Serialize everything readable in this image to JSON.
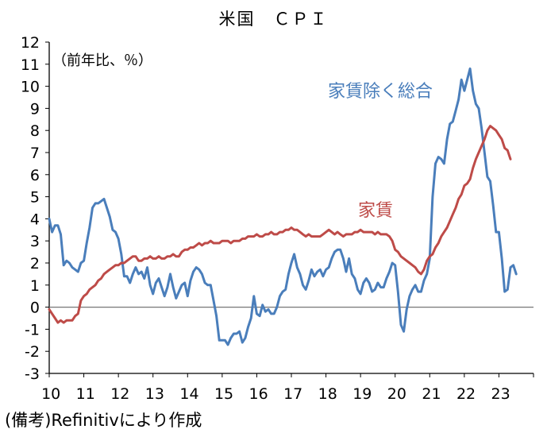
{
  "chart_data": {
    "type": "line",
    "title": "米国　ＣＰＩ",
    "unit_label": "（前年比、％）",
    "source_note": "(備考)Refinitivにより作成",
    "x_start": 2010.0,
    "x_step": 0.0833333,
    "xlim": [
      2010,
      2024
    ],
    "ylim": [
      -3,
      12
    ],
    "y_ticks": [
      -3,
      -2,
      -1,
      0,
      1,
      2,
      3,
      4,
      5,
      6,
      7,
      8,
      9,
      10,
      11,
      12
    ],
    "x_ticks": [
      "10",
      "11",
      "12",
      "13",
      "14",
      "15",
      "16",
      "17",
      "18",
      "19",
      "20",
      "21",
      "22",
      "23"
    ],
    "series": [
      {
        "name": "家賃除く総合",
        "color": "#4a7ebb",
        "values": [
          4.0,
          3.4,
          3.7,
          3.7,
          3.3,
          1.9,
          2.1,
          2.0,
          1.8,
          1.7,
          1.6,
          2.0,
          2.1,
          2.9,
          3.6,
          4.5,
          4.7,
          4.7,
          4.8,
          4.9,
          4.5,
          4.1,
          3.5,
          3.4,
          3.1,
          2.4,
          1.4,
          1.4,
          1.1,
          1.5,
          1.8,
          1.5,
          1.6,
          1.3,
          1.8,
          1.0,
          0.6,
          1.1,
          1.3,
          0.9,
          0.5,
          0.9,
          1.5,
          0.9,
          0.4,
          0.7,
          1.0,
          1.1,
          0.5,
          1.2,
          1.6,
          1.8,
          1.7,
          1.5,
          1.1,
          1.0,
          1.0,
          0.3,
          -0.4,
          -1.5,
          -1.5,
          -1.5,
          -1.7,
          -1.4,
          -1.2,
          -1.2,
          -1.1,
          -1.6,
          -1.4,
          -0.9,
          -0.5,
          0.5,
          -0.3,
          -0.4,
          0.1,
          -0.2,
          -0.1,
          -0.3,
          -0.3,
          0.0,
          0.5,
          0.7,
          0.8,
          1.5,
          2.0,
          2.4,
          1.8,
          1.5,
          1.0,
          0.8,
          1.2,
          1.7,
          1.4,
          1.6,
          1.7,
          1.4,
          1.7,
          1.8,
          2.2,
          2.5,
          2.6,
          2.6,
          2.2,
          1.6,
          2.2,
          1.5,
          1.3,
          0.8,
          0.6,
          1.1,
          1.3,
          1.1,
          0.7,
          0.8,
          1.1,
          0.9,
          0.9,
          1.3,
          1.6,
          2.0,
          1.9,
          0.7,
          -0.8,
          -1.1,
          -0.1,
          0.5,
          0.8,
          1.0,
          0.7,
          0.7,
          1.2,
          1.5,
          2.2,
          5.0,
          6.5,
          6.8,
          6.7,
          6.5,
          7.6,
          8.3,
          8.4,
          8.9,
          9.4,
          10.3,
          9.8,
          10.3,
          10.8,
          9.8,
          9.2,
          9.0,
          8.1,
          7.0,
          5.9,
          5.7,
          4.6,
          3.4,
          3.4,
          2.2,
          0.7,
          0.8,
          1.8,
          1.9,
          1.5
        ]
      },
      {
        "name": "家賃",
        "color": "#be4b48",
        "values": [
          -0.1,
          -0.3,
          -0.5,
          -0.7,
          -0.6,
          -0.7,
          -0.6,
          -0.6,
          -0.6,
          -0.4,
          -0.3,
          0.3,
          0.5,
          0.6,
          0.8,
          0.9,
          1.0,
          1.2,
          1.3,
          1.5,
          1.6,
          1.7,
          1.8,
          1.9,
          1.9,
          2.0,
          2.0,
          2.1,
          2.2,
          2.3,
          2.3,
          2.1,
          2.1,
          2.2,
          2.2,
          2.3,
          2.2,
          2.2,
          2.3,
          2.2,
          2.2,
          2.3,
          2.3,
          2.4,
          2.3,
          2.3,
          2.5,
          2.6,
          2.6,
          2.7,
          2.7,
          2.8,
          2.9,
          2.8,
          2.9,
          2.9,
          3.0,
          2.9,
          2.9,
          2.9,
          3.0,
          3.0,
          3.0,
          2.9,
          3.0,
          3.0,
          3.0,
          3.1,
          3.1,
          3.2,
          3.2,
          3.2,
          3.3,
          3.2,
          3.2,
          3.3,
          3.3,
          3.4,
          3.3,
          3.3,
          3.4,
          3.4,
          3.5,
          3.5,
          3.6,
          3.5,
          3.5,
          3.4,
          3.3,
          3.2,
          3.3,
          3.2,
          3.2,
          3.2,
          3.2,
          3.3,
          3.4,
          3.5,
          3.4,
          3.3,
          3.4,
          3.3,
          3.2,
          3.3,
          3.3,
          3.3,
          3.4,
          3.4,
          3.5,
          3.4,
          3.4,
          3.4,
          3.4,
          3.3,
          3.4,
          3.3,
          3.3,
          3.3,
          3.2,
          3.0,
          2.6,
          2.5,
          2.3,
          2.2,
          2.1,
          2.0,
          1.9,
          1.8,
          1.6,
          1.5,
          1.7,
          2.1,
          2.3,
          2.4,
          2.7,
          2.9,
          3.2,
          3.4,
          3.6,
          3.9,
          4.2,
          4.5,
          4.9,
          5.1,
          5.5,
          5.6,
          5.8,
          6.3,
          6.7,
          7.0,
          7.3,
          7.6,
          8.0,
          8.2,
          8.1,
          8.0,
          7.8,
          7.6,
          7.2,
          7.1,
          6.7
        ]
      }
    ],
    "annotations": [
      {
        "text": "家賃除く総合",
        "series": 0
      },
      {
        "text": "家賃",
        "series": 1
      }
    ]
  }
}
